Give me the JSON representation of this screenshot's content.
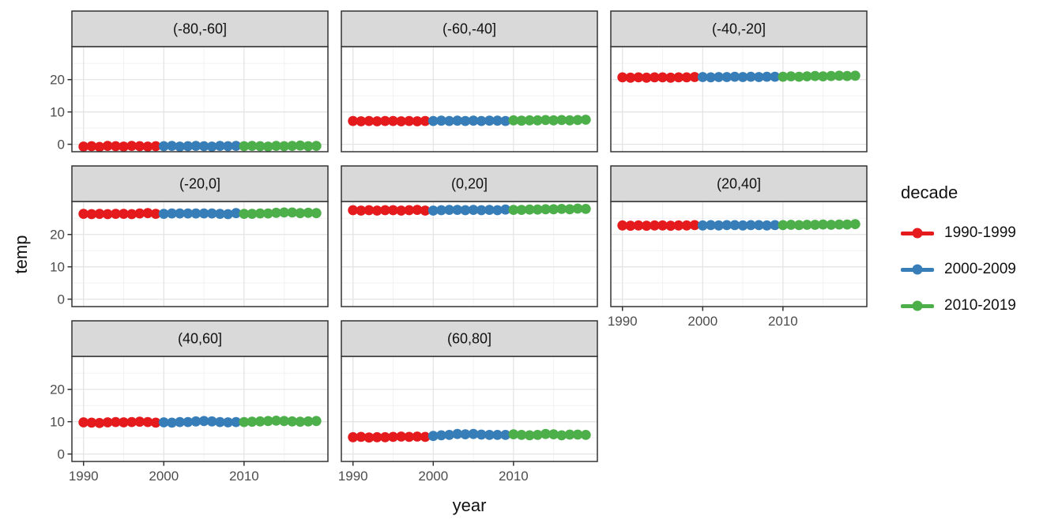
{
  "colors": {
    "background": "#FFFFFF",
    "panel_background": "#FFFFFF",
    "panel_border": "#333333",
    "strip_background": "#D9D9D9",
    "strip_border": "#333333",
    "grid_major": "#E4E4E4",
    "grid_minor": "#F2F2F2",
    "tick_mark": "#333333",
    "tick_label": "#4D4D4D",
    "text": "#111111"
  },
  "chart_data": {
    "type": "scatter",
    "title": "",
    "xlabel": "year",
    "ylabel": "temp",
    "x_ticks": [
      1990,
      2000,
      2010
    ],
    "x_minor_ticks": [
      1995,
      2005,
      2015
    ],
    "y_ticks": [
      0,
      10,
      20
    ],
    "y_minor_ticks": [
      5,
      15,
      25
    ],
    "xlim": [
      1988.55,
      2020.45
    ],
    "ylim": [
      -2.3,
      30.2
    ],
    "grid": "on",
    "legend_position": "right",
    "legend": {
      "title": "decade",
      "entries": [
        {
          "label": "1990-1999",
          "color": "#E41A1C"
        },
        {
          "label": "2000-2009",
          "color": "#377EB8"
        },
        {
          "label": "2010-2019",
          "color": "#4DAF4A"
        }
      ]
    },
    "years": [
      1990,
      1991,
      1992,
      1993,
      1994,
      1995,
      1996,
      1997,
      1998,
      1999,
      2000,
      2001,
      2002,
      2003,
      2004,
      2005,
      2006,
      2007,
      2008,
      2009,
      2010,
      2011,
      2012,
      2013,
      2014,
      2015,
      2016,
      2017,
      2018,
      2019
    ],
    "facets": [
      {
        "label": "(-80,-60]",
        "values": [
          -0.7,
          -0.6,
          -0.8,
          -0.5,
          -0.6,
          -0.7,
          -0.5,
          -0.6,
          -0.7,
          -0.6,
          -0.6,
          -0.5,
          -0.7,
          -0.6,
          -0.5,
          -0.6,
          -0.7,
          -0.5,
          -0.6,
          -0.5,
          -0.6,
          -0.5,
          -0.6,
          -0.7,
          -0.5,
          -0.6,
          -0.5,
          -0.4,
          -0.6,
          -0.5
        ]
      },
      {
        "label": "(-60,-40]",
        "values": [
          7.2,
          7.1,
          7.2,
          7.1,
          7.2,
          7.2,
          7.1,
          7.2,
          7.1,
          7.2,
          7.2,
          7.3,
          7.2,
          7.3,
          7.2,
          7.3,
          7.2,
          7.3,
          7.3,
          7.2,
          7.4,
          7.3,
          7.4,
          7.4,
          7.5,
          7.4,
          7.5,
          7.4,
          7.5,
          7.6
        ]
      },
      {
        "label": "(-40,-20]",
        "values": [
          20.7,
          20.6,
          20.7,
          20.6,
          20.7,
          20.7,
          20.6,
          20.7,
          20.7,
          20.8,
          20.8,
          20.7,
          20.8,
          20.8,
          20.9,
          20.8,
          20.9,
          20.8,
          20.9,
          20.9,
          20.9,
          21.0,
          20.9,
          21.0,
          21.1,
          21.0,
          21.1,
          21.2,
          21.1,
          21.2
        ]
      },
      {
        "label": "(-20,0]",
        "values": [
          26.4,
          26.3,
          26.4,
          26.3,
          26.4,
          26.4,
          26.3,
          26.5,
          26.6,
          26.4,
          26.4,
          26.5,
          26.5,
          26.5,
          26.5,
          26.5,
          26.5,
          26.4,
          26.3,
          26.6,
          26.4,
          26.4,
          26.5,
          26.5,
          26.7,
          26.8,
          26.8,
          26.6,
          26.7,
          26.6
        ]
      },
      {
        "label": "(0,20]",
        "values": [
          27.5,
          27.4,
          27.5,
          27.4,
          27.5,
          27.5,
          27.4,
          27.5,
          27.6,
          27.4,
          27.4,
          27.5,
          27.6,
          27.6,
          27.5,
          27.6,
          27.5,
          27.6,
          27.5,
          27.7,
          27.6,
          27.6,
          27.7,
          27.7,
          27.8,
          27.8,
          27.9,
          27.8,
          28.0,
          27.9
        ]
      },
      {
        "label": "(20,40]",
        "values": [
          22.8,
          22.7,
          22.8,
          22.7,
          22.8,
          22.8,
          22.7,
          22.8,
          22.8,
          22.9,
          22.8,
          22.9,
          22.8,
          22.9,
          22.9,
          22.8,
          22.9,
          22.9,
          22.8,
          22.9,
          22.9,
          23.0,
          22.9,
          23.0,
          23.0,
          23.1,
          23.0,
          23.1,
          23.1,
          23.2
        ]
      },
      {
        "label": "(40,60]",
        "values": [
          9.8,
          9.7,
          9.6,
          9.8,
          9.9,
          9.8,
          9.9,
          10.0,
          9.9,
          9.7,
          9.8,
          9.7,
          9.9,
          9.9,
          10.1,
          10.2,
          10.1,
          9.9,
          9.8,
          9.9,
          9.9,
          10.0,
          10.1,
          10.2,
          10.3,
          10.2,
          10.1,
          10.0,
          10.1,
          10.2
        ]
      },
      {
        "label": "(60,80]",
        "values": [
          5.2,
          5.3,
          5.1,
          5.2,
          5.2,
          5.3,
          5.4,
          5.3,
          5.4,
          5.3,
          5.6,
          5.8,
          5.9,
          6.2,
          6.1,
          6.2,
          6.0,
          5.9,
          5.9,
          5.9,
          6.1,
          5.9,
          5.8,
          5.9,
          6.2,
          6.1,
          5.8,
          6.0,
          6.0,
          5.9
        ]
      }
    ]
  }
}
